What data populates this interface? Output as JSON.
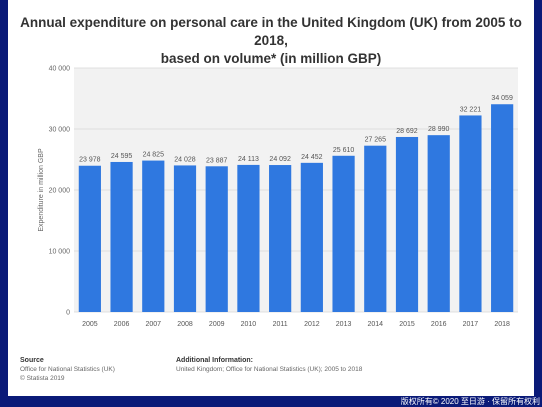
{
  "chart_data": {
    "type": "bar",
    "title_line1": "Annual expenditure on personal care in the United Kingdom (UK) from 2005 to 2018,",
    "title_line2": "based on volume* (in million GBP)",
    "ylabel": "Expenditure in million GBP",
    "xlabel": "",
    "ylim": [
      0,
      40000
    ],
    "yticks": [
      0,
      10000,
      20000,
      30000,
      40000
    ],
    "ytick_labels": [
      "0",
      "10 000",
      "20 000",
      "30 000",
      "40 000"
    ],
    "categories": [
      "2005",
      "2006",
      "2007",
      "2008",
      "2009",
      "2010",
      "2011",
      "2012",
      "2013",
      "2014",
      "2015",
      "2016",
      "2017",
      "2018"
    ],
    "values": [
      23978,
      24595,
      24825,
      24028,
      23887,
      24113,
      24092,
      24452,
      25610,
      27265,
      28692,
      28990,
      32221,
      34059
    ],
    "value_labels": [
      "23 978",
      "24 595",
      "24 825",
      "24 028",
      "23 887",
      "24 113",
      "24 092",
      "24 452",
      "25 610",
      "27 265",
      "28 692",
      "28 990",
      "32 221",
      "34 059"
    ],
    "bar_color": "#2f78e0",
    "grid": true
  },
  "footer": {
    "source_heading": "Source",
    "source_line1": "Office for National Statistics (UK)",
    "source_line2": "© Statista 2019",
    "info_heading": "Additional Information:",
    "info_line1": "United Kingdom; Office for National Statistics (UK); 2005 to 2018"
  },
  "watermark": "版权所有© 2020 至日游 · 保留所有权利"
}
